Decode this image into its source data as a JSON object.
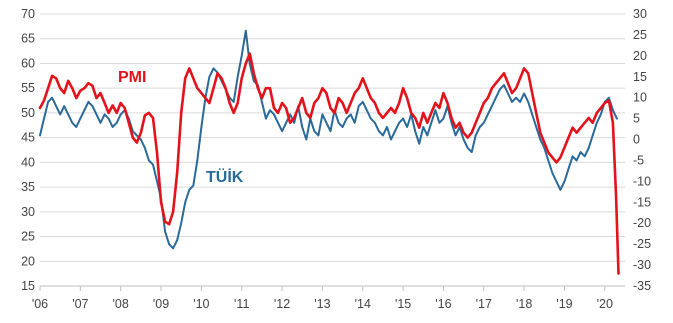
{
  "chart_data": {
    "type": "line",
    "title": "",
    "xlabel": "",
    "ylabel_left": "",
    "ylabel_right": "",
    "x_tick_labels": [
      "'06",
      "'07",
      "'08",
      "'09",
      "'10",
      "'11",
      "'12",
      "'13",
      "'14",
      "'15",
      "'16",
      "'17",
      "'18",
      "'19",
      "'20"
    ],
    "y_left_ticks": [
      15,
      20,
      25,
      30,
      35,
      40,
      45,
      50,
      55,
      60,
      65,
      70
    ],
    "y_right_ticks": [
      -35,
      -30,
      -25,
      -20,
      -15,
      -10,
      -5,
      0,
      5,
      10,
      15,
      20,
      25,
      30
    ],
    "ylim_left": [
      15,
      70
    ],
    "ylim_right": [
      -35,
      30
    ],
    "xlim": [
      2006.0,
      2020.5
    ],
    "grid": true,
    "legend": "inline labels",
    "series": [
      {
        "name": "PMI",
        "axis": "left",
        "color": "#e3121b",
        "points": [
          [
            2006.0,
            51
          ],
          [
            2006.1,
            52.5
          ],
          [
            2006.2,
            55
          ],
          [
            2006.3,
            57.5
          ],
          [
            2006.4,
            57
          ],
          [
            2006.5,
            55
          ],
          [
            2006.6,
            54
          ],
          [
            2006.7,
            56.5
          ],
          [
            2006.8,
            55
          ],
          [
            2006.9,
            53
          ],
          [
            2007.0,
            54.5
          ],
          [
            2007.1,
            55
          ],
          [
            2007.2,
            56
          ],
          [
            2007.3,
            55.5
          ],
          [
            2007.4,
            53
          ],
          [
            2007.5,
            54
          ],
          [
            2007.6,
            52
          ],
          [
            2007.7,
            50
          ],
          [
            2007.8,
            51.5
          ],
          [
            2007.9,
            50
          ],
          [
            2008.0,
            52
          ],
          [
            2008.1,
            51
          ],
          [
            2008.2,
            48
          ],
          [
            2008.3,
            45
          ],
          [
            2008.4,
            44
          ],
          [
            2008.5,
            46
          ],
          [
            2008.6,
            49.5
          ],
          [
            2008.7,
            50
          ],
          [
            2008.8,
            49
          ],
          [
            2008.9,
            42
          ],
          [
            2009.0,
            32
          ],
          [
            2009.1,
            28
          ],
          [
            2009.2,
            27.5
          ],
          [
            2009.3,
            30
          ],
          [
            2009.4,
            38
          ],
          [
            2009.5,
            50
          ],
          [
            2009.6,
            57
          ],
          [
            2009.7,
            59
          ],
          [
            2009.8,
            57
          ],
          [
            2009.9,
            55
          ],
          [
            2010.0,
            54
          ],
          [
            2010.1,
            53
          ],
          [
            2010.2,
            52
          ],
          [
            2010.3,
            55
          ],
          [
            2010.4,
            58
          ],
          [
            2010.5,
            57
          ],
          [
            2010.6,
            55
          ],
          [
            2010.7,
            52
          ],
          [
            2010.8,
            50
          ],
          [
            2010.9,
            52
          ],
          [
            2011.0,
            57
          ],
          [
            2011.1,
            60
          ],
          [
            2011.2,
            62
          ],
          [
            2011.3,
            58
          ],
          [
            2011.4,
            55
          ],
          [
            2011.5,
            53
          ],
          [
            2011.6,
            55
          ],
          [
            2011.7,
            55
          ],
          [
            2011.8,
            51
          ],
          [
            2011.9,
            50
          ],
          [
            2012.0,
            52
          ],
          [
            2012.1,
            51
          ],
          [
            2012.2,
            48
          ],
          [
            2012.3,
            49
          ],
          [
            2012.4,
            51
          ],
          [
            2012.5,
            53
          ],
          [
            2012.6,
            50
          ],
          [
            2012.7,
            49
          ],
          [
            2012.8,
            52
          ],
          [
            2012.9,
            53
          ],
          [
            2013.0,
            55
          ],
          [
            2013.1,
            54
          ],
          [
            2013.2,
            51
          ],
          [
            2013.3,
            50
          ],
          [
            2013.4,
            53
          ],
          [
            2013.5,
            52
          ],
          [
            2013.6,
            50
          ],
          [
            2013.7,
            52
          ],
          [
            2013.8,
            54
          ],
          [
            2013.9,
            55
          ],
          [
            2014.0,
            57
          ],
          [
            2014.1,
            55
          ],
          [
            2014.2,
            53
          ],
          [
            2014.3,
            52
          ],
          [
            2014.4,
            50
          ],
          [
            2014.5,
            49
          ],
          [
            2014.6,
            50
          ],
          [
            2014.7,
            51
          ],
          [
            2014.8,
            50
          ],
          [
            2014.9,
            52
          ],
          [
            2015.0,
            55
          ],
          [
            2015.1,
            53
          ],
          [
            2015.2,
            50
          ],
          [
            2015.3,
            49
          ],
          [
            2015.4,
            47
          ],
          [
            2015.5,
            50
          ],
          [
            2015.6,
            48
          ],
          [
            2015.7,
            50
          ],
          [
            2015.8,
            52
          ],
          [
            2015.9,
            51
          ],
          [
            2016.0,
            54
          ],
          [
            2016.1,
            52
          ],
          [
            2016.2,
            49
          ],
          [
            2016.3,
            47
          ],
          [
            2016.4,
            48
          ],
          [
            2016.5,
            46
          ],
          [
            2016.6,
            45
          ],
          [
            2016.7,
            46
          ],
          [
            2016.8,
            48
          ],
          [
            2016.9,
            50
          ],
          [
            2017.0,
            52
          ],
          [
            2017.1,
            53
          ],
          [
            2017.2,
            55
          ],
          [
            2017.3,
            56
          ],
          [
            2017.4,
            57
          ],
          [
            2017.5,
            58
          ],
          [
            2017.6,
            56
          ],
          [
            2017.7,
            54
          ],
          [
            2017.8,
            55
          ],
          [
            2017.9,
            57
          ],
          [
            2018.0,
            59
          ],
          [
            2018.1,
            58
          ],
          [
            2018.2,
            54
          ],
          [
            2018.3,
            50
          ],
          [
            2018.4,
            46
          ],
          [
            2018.5,
            44
          ],
          [
            2018.6,
            42
          ],
          [
            2018.7,
            41
          ],
          [
            2018.8,
            40
          ],
          [
            2018.9,
            41
          ],
          [
            2019.0,
            43
          ],
          [
            2019.1,
            45
          ],
          [
            2019.2,
            47
          ],
          [
            2019.3,
            46
          ],
          [
            2019.4,
            47
          ],
          [
            2019.5,
            48
          ],
          [
            2019.6,
            49
          ],
          [
            2019.7,
            48
          ],
          [
            2019.8,
            50
          ],
          [
            2019.9,
            51
          ],
          [
            2020.0,
            52
          ],
          [
            2020.1,
            52.5
          ],
          [
            2020.2,
            48
          ],
          [
            2020.28,
            33
          ],
          [
            2020.34,
            17.5
          ]
        ]
      },
      {
        "name": "TÜİK",
        "axis": "right",
        "color": "#2a6a99",
        "points": [
          [
            2006.0,
            1
          ],
          [
            2006.1,
            5
          ],
          [
            2006.2,
            9
          ],
          [
            2006.3,
            10
          ],
          [
            2006.4,
            8
          ],
          [
            2006.5,
            6
          ],
          [
            2006.6,
            8
          ],
          [
            2006.7,
            6
          ],
          [
            2006.8,
            4
          ],
          [
            2006.9,
            3
          ],
          [
            2007.0,
            5
          ],
          [
            2007.1,
            7
          ],
          [
            2007.2,
            9
          ],
          [
            2007.3,
            8
          ],
          [
            2007.4,
            6
          ],
          [
            2007.5,
            4
          ],
          [
            2007.6,
            6
          ],
          [
            2007.7,
            5
          ],
          [
            2007.8,
            3
          ],
          [
            2007.9,
            4
          ],
          [
            2008.0,
            6
          ],
          [
            2008.1,
            7
          ],
          [
            2008.2,
            5
          ],
          [
            2008.3,
            2
          ],
          [
            2008.4,
            1
          ],
          [
            2008.5,
            0
          ],
          [
            2008.6,
            -2
          ],
          [
            2008.7,
            -5
          ],
          [
            2008.8,
            -6
          ],
          [
            2008.9,
            -10
          ],
          [
            2009.0,
            -14
          ],
          [
            2009.1,
            -22
          ],
          [
            2009.2,
            -25
          ],
          [
            2009.3,
            -26
          ],
          [
            2009.4,
            -24
          ],
          [
            2009.5,
            -20
          ],
          [
            2009.6,
            -15
          ],
          [
            2009.7,
            -12
          ],
          [
            2009.8,
            -11
          ],
          [
            2009.9,
            -5
          ],
          [
            2010.0,
            3
          ],
          [
            2010.1,
            10
          ],
          [
            2010.2,
            15
          ],
          [
            2010.3,
            17
          ],
          [
            2010.4,
            16
          ],
          [
            2010.5,
            14
          ],
          [
            2010.6,
            12
          ],
          [
            2010.7,
            10
          ],
          [
            2010.8,
            9
          ],
          [
            2010.9,
            15
          ],
          [
            2011.0,
            20
          ],
          [
            2011.1,
            26
          ],
          [
            2011.2,
            18
          ],
          [
            2011.3,
            14
          ],
          [
            2011.4,
            13
          ],
          [
            2011.5,
            9
          ],
          [
            2011.6,
            5
          ],
          [
            2011.7,
            7
          ],
          [
            2011.8,
            6
          ],
          [
            2011.9,
            4
          ],
          [
            2012.0,
            2
          ],
          [
            2012.1,
            4
          ],
          [
            2012.2,
            6
          ],
          [
            2012.3,
            4
          ],
          [
            2012.4,
            8
          ],
          [
            2012.5,
            3
          ],
          [
            2012.6,
            0
          ],
          [
            2012.7,
            5
          ],
          [
            2012.8,
            2
          ],
          [
            2012.9,
            1
          ],
          [
            2013.0,
            6
          ],
          [
            2013.1,
            4
          ],
          [
            2013.2,
            2
          ],
          [
            2013.3,
            7
          ],
          [
            2013.4,
            4
          ],
          [
            2013.5,
            3
          ],
          [
            2013.6,
            5
          ],
          [
            2013.7,
            6
          ],
          [
            2013.8,
            4
          ],
          [
            2013.9,
            8
          ],
          [
            2014.0,
            9
          ],
          [
            2014.1,
            7
          ],
          [
            2014.2,
            5
          ],
          [
            2014.3,
            4
          ],
          [
            2014.4,
            2
          ],
          [
            2014.5,
            1
          ],
          [
            2014.6,
            3
          ],
          [
            2014.7,
            0
          ],
          [
            2014.8,
            2
          ],
          [
            2014.9,
            4
          ],
          [
            2015.0,
            5
          ],
          [
            2015.1,
            3
          ],
          [
            2015.2,
            6
          ],
          [
            2015.3,
            2
          ],
          [
            2015.4,
            -1
          ],
          [
            2015.5,
            3
          ],
          [
            2015.6,
            1
          ],
          [
            2015.7,
            4
          ],
          [
            2015.8,
            7
          ],
          [
            2015.9,
            4
          ],
          [
            2016.0,
            5
          ],
          [
            2016.1,
            8
          ],
          [
            2016.2,
            4
          ],
          [
            2016.3,
            1
          ],
          [
            2016.4,
            3
          ],
          [
            2016.5,
            0
          ],
          [
            2016.6,
            -2
          ],
          [
            2016.7,
            -3
          ],
          [
            2016.8,
            1
          ],
          [
            2016.9,
            3
          ],
          [
            2017.0,
            4
          ],
          [
            2017.1,
            6
          ],
          [
            2017.2,
            8
          ],
          [
            2017.3,
            10
          ],
          [
            2017.4,
            12
          ],
          [
            2017.5,
            13
          ],
          [
            2017.6,
            11
          ],
          [
            2017.7,
            9
          ],
          [
            2017.8,
            10
          ],
          [
            2017.9,
            9
          ],
          [
            2018.0,
            11
          ],
          [
            2018.1,
            9
          ],
          [
            2018.2,
            6
          ],
          [
            2018.3,
            3
          ],
          [
            2018.4,
            0
          ],
          [
            2018.5,
            -2
          ],
          [
            2018.6,
            -5
          ],
          [
            2018.7,
            -8
          ],
          [
            2018.8,
            -10
          ],
          [
            2018.9,
            -12
          ],
          [
            2019.0,
            -10
          ],
          [
            2019.1,
            -7
          ],
          [
            2019.2,
            -4
          ],
          [
            2019.3,
            -5
          ],
          [
            2019.4,
            -3
          ],
          [
            2019.5,
            -4
          ],
          [
            2019.6,
            -2
          ],
          [
            2019.7,
            1
          ],
          [
            2019.8,
            4
          ],
          [
            2019.9,
            6
          ],
          [
            2020.0,
            9
          ],
          [
            2020.1,
            10
          ],
          [
            2020.2,
            7
          ],
          [
            2020.3,
            5
          ]
        ]
      }
    ],
    "annotations": [
      {
        "text": "PMI",
        "series": "PMI",
        "color": "#e3121b"
      },
      {
        "text": "TÜİK",
        "series": "TÜİK",
        "color": "#2a6a99"
      }
    ]
  }
}
